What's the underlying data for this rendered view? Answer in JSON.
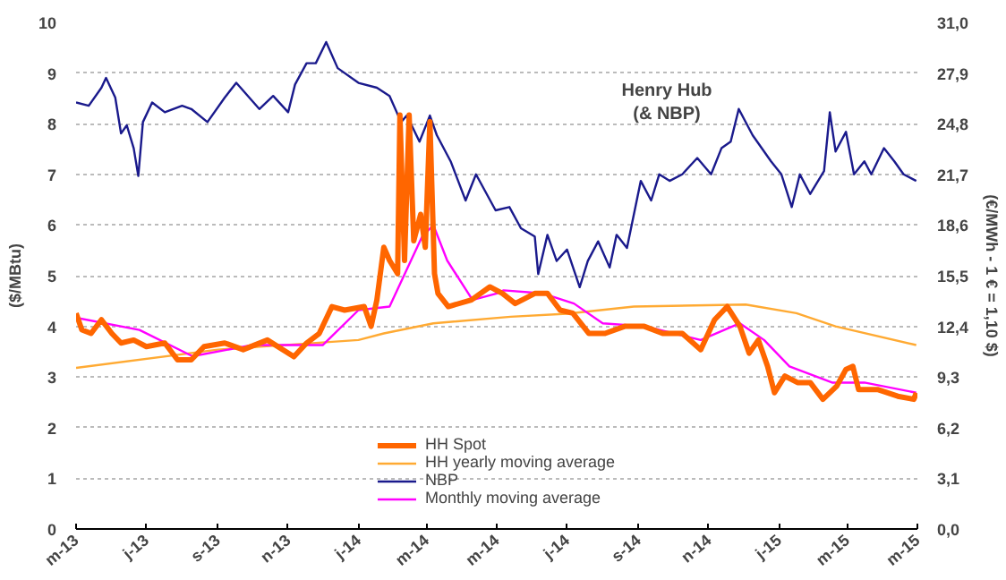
{
  "chart_data": {
    "type": "line",
    "title": "Henry Hub\n(& NBP)",
    "ylabel": "($/MBtu)",
    "y2label": "(€/MWh - 1 € = 1,10 $)",
    "xlim": [
      "2013-05-01",
      "2015-05-01"
    ],
    "xticks": [
      {
        "value": "2013-05-01",
        "label": "m-13"
      },
      {
        "value": "2013-07-01",
        "label": "j-13"
      },
      {
        "value": "2013-09-01",
        "label": "s-13"
      },
      {
        "value": "2013-11-01",
        "label": "n-13"
      },
      {
        "value": "2014-01-01",
        "label": "j-14"
      },
      {
        "value": "2014-03-01",
        "label": "m-14"
      },
      {
        "value": "2014-05-01",
        "label": "m-14"
      },
      {
        "value": "2014-07-01",
        "label": "j-14"
      },
      {
        "value": "2014-09-01",
        "label": "s-14"
      },
      {
        "value": "2014-11-01",
        "label": "n-14"
      },
      {
        "value": "2015-01-01",
        "label": "j-15"
      },
      {
        "value": "2015-03-01",
        "label": "m-15"
      },
      {
        "value": "2015-05-01",
        "label": "m-15"
      }
    ],
    "ylim": [
      0,
      10
    ],
    "yticks": [
      0,
      1,
      2,
      3,
      4,
      5,
      6,
      7,
      8,
      9,
      10
    ],
    "y2lim": [
      0,
      31
    ],
    "y2ticks": [
      {
        "value": 0,
        "label": "0,0"
      },
      {
        "value": 3.1,
        "label": "3,1"
      },
      {
        "value": 6.2,
        "label": "6,2"
      },
      {
        "value": 9.3,
        "label": "9,3"
      },
      {
        "value": 12.4,
        "label": "12,4"
      },
      {
        "value": 15.5,
        "label": "15,5"
      },
      {
        "value": 18.6,
        "label": "18,6"
      },
      {
        "value": 21.7,
        "label": "21,7"
      },
      {
        "value": 24.8,
        "label": "24,8"
      },
      {
        "value": 27.9,
        "label": "27,9"
      },
      {
        "value": 31,
        "label": "31,0"
      }
    ],
    "grid": "y",
    "legend": "bottom",
    "series": [
      {
        "name": "HH Spot",
        "color": "#ff6600",
        "x": [
          "2013-05-01",
          "2013-05-06",
          "2013-05-14",
          "2013-05-23",
          "2013-06-01",
          "2013-06-09",
          "2013-06-20",
          "2013-07-01",
          "2013-07-17",
          "2013-07-28",
          "2013-08-09",
          "2013-08-20",
          "2013-09-07",
          "2013-09-23",
          "2013-10-14",
          "2013-11-06",
          "2013-11-17",
          "2013-11-28",
          "2013-12-09",
          "2013-12-20",
          "2014-01-06",
          "2014-01-12",
          "2014-01-17",
          "2014-01-23",
          "2014-01-28",
          "2014-02-04",
          "2014-02-06",
          "2014-02-10",
          "2014-02-14",
          "2014-02-18",
          "2014-02-24",
          "2014-02-28",
          "2014-03-04",
          "2014-03-08",
          "2014-03-11",
          "2014-03-20",
          "2014-04-09",
          "2014-04-25",
          "2014-05-06",
          "2014-05-17",
          "2014-06-03",
          "2014-06-14",
          "2014-06-25",
          "2014-07-06",
          "2014-07-20",
          "2014-08-03",
          "2014-08-20",
          "2014-09-06",
          "2014-09-22",
          "2014-10-09",
          "2014-10-25",
          "2014-11-06",
          "2014-11-17",
          "2014-11-28",
          "2014-12-06",
          "2014-12-14",
          "2014-12-22",
          "2014-12-28",
          "2015-01-06",
          "2015-01-17",
          "2015-01-28",
          "2015-02-08",
          "2015-02-20",
          "2015-02-28",
          "2015-03-06",
          "2015-03-11",
          "2015-03-28",
          "2015-04-14",
          "2015-04-28",
          "2015-04-30"
        ],
        "values": [
          4.26,
          3.93,
          3.86,
          4.13,
          3.86,
          3.67,
          3.73,
          3.6,
          3.67,
          3.34,
          3.34,
          3.6,
          3.67,
          3.54,
          3.73,
          3.4,
          3.67,
          3.86,
          4.39,
          4.32,
          4.39,
          4.0,
          4.52,
          5.56,
          5.3,
          5.04,
          8.17,
          5.3,
          8.17,
          5.69,
          6.21,
          5.56,
          8.04,
          5.04,
          4.65,
          4.39,
          4.52,
          4.78,
          4.65,
          4.45,
          4.65,
          4.65,
          4.32,
          4.26,
          3.86,
          3.86,
          4.0,
          4.0,
          3.86,
          3.86,
          3.54,
          4.13,
          4.39,
          4.0,
          3.47,
          3.73,
          3.21,
          2.69,
          3.02,
          2.89,
          2.89,
          2.56,
          2.82,
          3.15,
          3.21,
          2.75,
          2.75,
          2.62,
          2.56,
          2.69
        ]
      },
      {
        "name": "HH yearly moving average",
        "color": "#ffaa33",
        "x": [
          "2013-05-01",
          "2013-09-01",
          "2014-01-01",
          "2014-01-23",
          "2014-03-07",
          "2014-05-13",
          "2014-07-01",
          "2014-08-28",
          "2014-12-03",
          "2015-01-16",
          "2015-02-19",
          "2015-04-30"
        ],
        "values": [
          3.18,
          3.54,
          3.73,
          3.86,
          4.06,
          4.19,
          4.25,
          4.39,
          4.43,
          4.26,
          4.0,
          3.63
        ]
      },
      {
        "name": "NBP",
        "color": "#1a1a8c",
        "axis": "y2",
        "x": [
          "2013-05-01",
          "2013-05-12",
          "2013-05-23",
          "2013-05-27",
          "2013-06-04",
          "2013-06-09",
          "2013-06-14",
          "2013-06-20",
          "2013-06-24",
          "2013-06-28",
          "2013-07-06",
          "2013-07-17",
          "2013-08-01",
          "2013-08-09",
          "2013-08-23",
          "2013-09-07",
          "2013-09-17",
          "2013-10-07",
          "2013-10-19",
          "2013-11-01",
          "2013-11-07",
          "2013-11-17",
          "2013-11-25",
          "2013-12-04",
          "2013-12-14",
          "2014-01-01",
          "2014-01-17",
          "2014-01-28",
          "2014-02-07",
          "2014-02-12",
          "2014-02-23",
          "2014-03-04",
          "2014-03-10",
          "2014-03-22",
          "2014-04-04",
          "2014-04-13",
          "2014-04-30",
          "2014-05-12",
          "2014-05-22",
          "2014-06-03",
          "2014-06-06",
          "2014-06-14",
          "2014-06-22",
          "2014-07-01",
          "2014-07-12",
          "2014-07-19",
          "2014-07-28",
          "2014-08-07",
          "2014-08-13",
          "2014-08-22",
          "2014-09-03",
          "2014-09-12",
          "2014-09-19",
          "2014-09-28",
          "2014-10-09",
          "2014-10-22",
          "2014-11-03",
          "2014-11-12",
          "2014-11-20",
          "2014-11-27",
          "2014-12-09",
          "2014-12-25",
          "2015-01-03",
          "2015-01-12",
          "2015-01-19",
          "2015-01-28",
          "2015-02-09",
          "2015-02-14",
          "2015-02-19",
          "2015-02-28",
          "2015-03-07",
          "2015-03-16",
          "2015-03-22",
          "2015-04-02",
          "2015-04-11",
          "2015-04-19",
          "2015-04-30"
        ],
        "values": [
          26.1,
          25.9,
          27.0,
          27.6,
          26.4,
          24.2,
          24.7,
          23.3,
          21.6,
          24.9,
          26.1,
          25.5,
          25.9,
          25.7,
          24.9,
          26.4,
          27.3,
          25.7,
          26.5,
          25.5,
          27.2,
          28.5,
          28.5,
          29.8,
          28.2,
          27.3,
          27.0,
          26.5,
          24.9,
          25.3,
          23.7,
          25.3,
          24.1,
          22.5,
          20.1,
          21.7,
          19.5,
          19.7,
          18.4,
          17.9,
          15.6,
          18.0,
          16.4,
          17.1,
          14.8,
          16.4,
          17.6,
          16.0,
          18.0,
          17.2,
          21.3,
          20.1,
          21.7,
          21.3,
          21.7,
          22.7,
          21.7,
          23.3,
          23.7,
          25.7,
          24.1,
          22.5,
          21.7,
          19.7,
          21.7,
          20.5,
          21.9,
          25.5,
          23.1,
          24.3,
          21.7,
          22.5,
          21.7,
          23.3,
          22.5,
          21.7,
          21.3
        ]
      },
      {
        "name": "Monthly moving average",
        "color": "#ff00ff",
        "x": [
          "2013-05-01",
          "2013-06-25",
          "2013-08-10",
          "2013-10-01",
          "2013-12-01",
          "2014-01-01",
          "2014-01-28",
          "2014-02-25",
          "2014-03-07",
          "2014-03-19",
          "2014-04-10",
          "2014-05-01",
          "2014-05-07",
          "2014-06-10",
          "2014-07-07",
          "2014-08-01",
          "2014-09-07",
          "2014-10-25",
          "2014-11-28",
          "2014-12-19",
          "2015-01-10",
          "2015-02-16",
          "2015-03-16",
          "2015-04-30"
        ],
        "values": [
          4.17,
          3.93,
          3.41,
          3.63,
          3.63,
          4.32,
          4.39,
          5.76,
          6.0,
          5.3,
          4.52,
          4.65,
          4.71,
          4.65,
          4.45,
          4.06,
          4.0,
          3.73,
          4.06,
          3.73,
          3.21,
          2.89,
          2.89,
          2.69
        ]
      }
    ]
  }
}
